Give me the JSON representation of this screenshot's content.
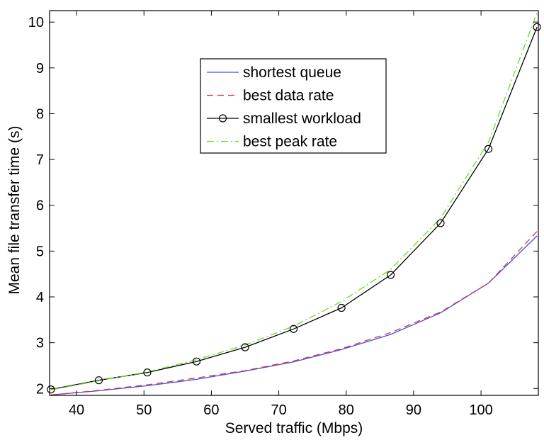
{
  "chart_data": {
    "type": "line",
    "title": "",
    "xlabel": "Served traffic (Mbps)",
    "ylabel": "Mean file transfer time (s)",
    "xlim": [
      36,
      108.5
    ],
    "ylim": [
      1.85,
      10.25
    ],
    "xticks": [
      40,
      50,
      60,
      70,
      80,
      90,
      100
    ],
    "yticks": [
      2,
      3,
      4,
      5,
      6,
      7,
      8,
      9,
      10
    ],
    "grid": false,
    "legend_position": "top-center",
    "series": [
      {
        "name": "shortest queue",
        "color": "#3b55e6",
        "dash": "solid",
        "marker": "none",
        "x": [
          36.2,
          43.3,
          50.5,
          57.8,
          65.0,
          72.2,
          79.3,
          86.6,
          94.0,
          101.1,
          108.3
        ],
        "y": [
          1.86,
          1.95,
          2.06,
          2.2,
          2.38,
          2.58,
          2.85,
          3.18,
          3.65,
          4.3,
          5.33
        ]
      },
      {
        "name": "best data rate",
        "color": "#e0303a",
        "dash": "dashed",
        "marker": "none",
        "x": [
          36.2,
          43.3,
          50.5,
          57.8,
          65.0,
          72.2,
          79.3,
          86.6,
          94.0,
          101.1,
          108.3
        ],
        "y": [
          1.86,
          1.96,
          2.08,
          2.23,
          2.39,
          2.6,
          2.87,
          3.22,
          3.67,
          4.3,
          5.43
        ]
      },
      {
        "name": "smallest workload",
        "color": "#000000",
        "dash": "solid",
        "marker": "circle",
        "x": [
          36.2,
          43.3,
          50.5,
          57.8,
          65.0,
          72.2,
          79.3,
          86.6,
          94.0,
          101.1,
          108.3
        ],
        "y": [
          1.98,
          2.18,
          2.35,
          2.59,
          2.9,
          3.3,
          3.76,
          4.48,
          5.61,
          7.23,
          9.89
        ]
      },
      {
        "name": "best peak rate",
        "color": "#66dd22",
        "dash": "dashdot",
        "marker": "none",
        "x": [
          36.2,
          43.3,
          50.5,
          57.8,
          65.0,
          72.2,
          79.3,
          86.6,
          94.0,
          101.1,
          108.3
        ],
        "y": [
          1.97,
          2.17,
          2.36,
          2.63,
          2.95,
          3.36,
          3.9,
          4.6,
          5.72,
          7.38,
          10.2
        ]
      }
    ]
  }
}
